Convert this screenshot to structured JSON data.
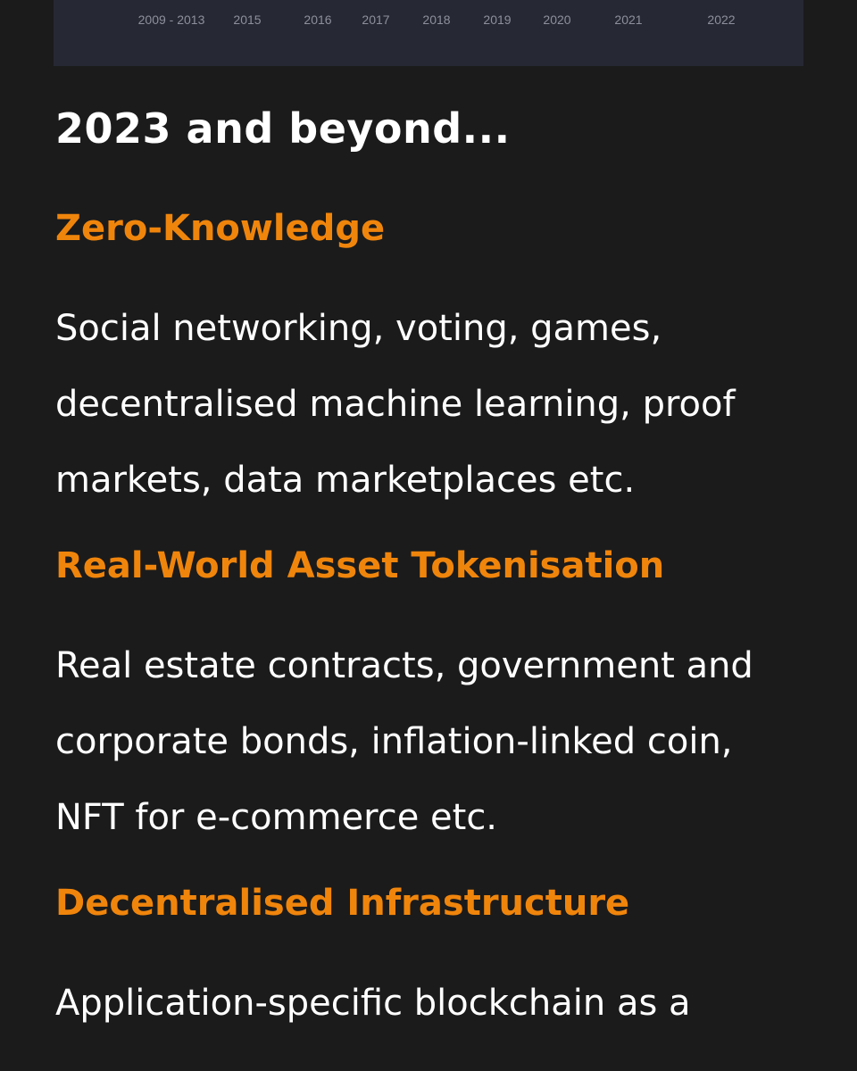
{
  "timeline": {
    "years": [
      "2009 - 2013",
      "2015",
      "2016",
      "2017",
      "2018",
      "2019",
      "2020",
      "2021",
      "2022"
    ]
  },
  "section": {
    "title": "2023 and beyond..."
  },
  "topics": [
    {
      "heading": "Zero-Knowledge",
      "text": "Social networking, voting, games, decentralised machine learning, proof markets, data marketplaces etc."
    },
    {
      "heading": "Real-World Asset Tokenisation",
      "text": "Real estate contracts, government and corporate bonds, inflation-linked coin, NFT for e-commerce etc."
    },
    {
      "heading": "Decentralised Infrastructure",
      "text": "Application-specific blockchain as a"
    }
  ],
  "colors": {
    "background": "#1b1b1b",
    "accent": "#f0850c",
    "timeline_bg": "#262833"
  }
}
